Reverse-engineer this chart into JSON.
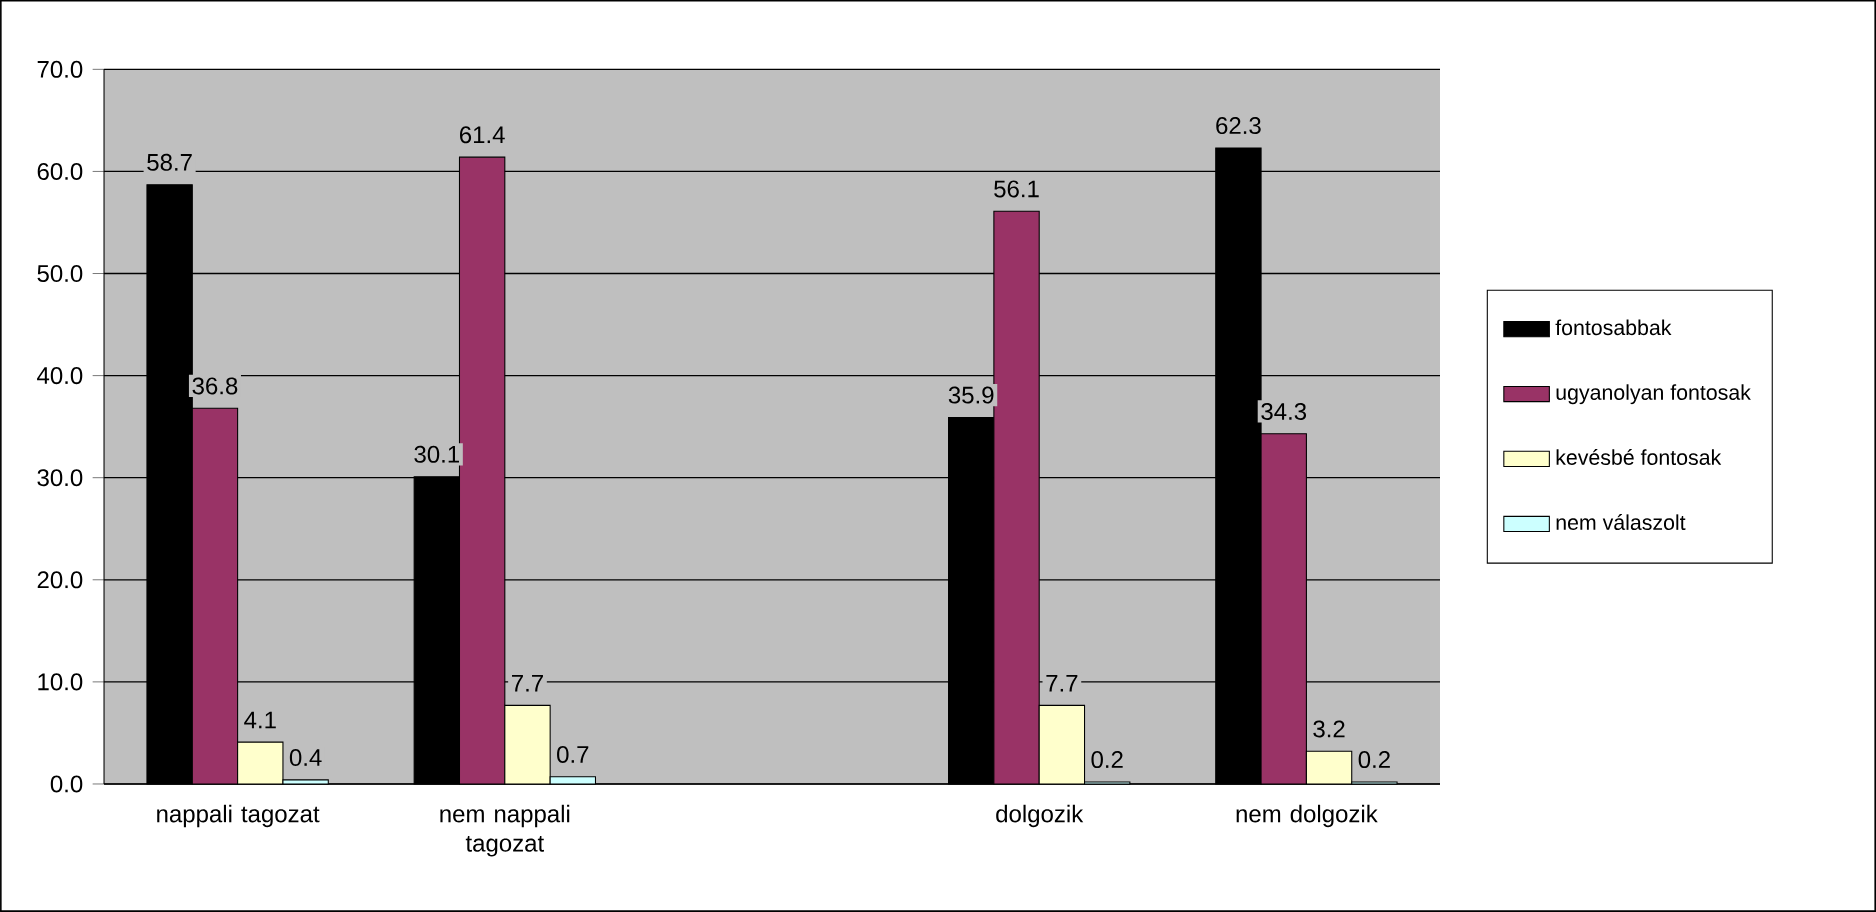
{
  "chart_data": {
    "type": "bar",
    "categories": [
      "nappali tagozat",
      "nem nappali tagozat",
      null,
      "dolgozik",
      "nem dolgozik"
    ],
    "series": [
      {
        "name": "fontosabbak",
        "color": "#000000",
        "values": [
          58.7,
          30.1,
          null,
          35.9,
          62.3
        ]
      },
      {
        "name": "ugyanolyan fontosak",
        "color": "#993366",
        "values": [
          36.8,
          61.4,
          null,
          56.1,
          34.3
        ]
      },
      {
        "name": "kevésbé fontosak",
        "color": "#ffffcc",
        "values": [
          4.1,
          7.7,
          null,
          7.7,
          3.2
        ]
      },
      {
        "name": "nem válaszolt",
        "color": "#ccffff",
        "values": [
          0.4,
          0.7,
          null,
          0.2,
          0.2
        ]
      }
    ],
    "ylim": [
      0,
      70
    ],
    "yticks": [
      {
        "value": 0,
        "label": "0.0"
      },
      {
        "value": 10,
        "label": "10.0"
      },
      {
        "value": 20,
        "label": "20.0"
      },
      {
        "value": 30,
        "label": "30.0"
      },
      {
        "value": 40,
        "label": "40.0"
      },
      {
        "value": 50,
        "label": "50.0"
      },
      {
        "value": 60,
        "label": "60.0"
      },
      {
        "value": 70,
        "label": "70.0"
      }
    ],
    "grid": "y",
    "legend": "right",
    "data_labels": true
  }
}
